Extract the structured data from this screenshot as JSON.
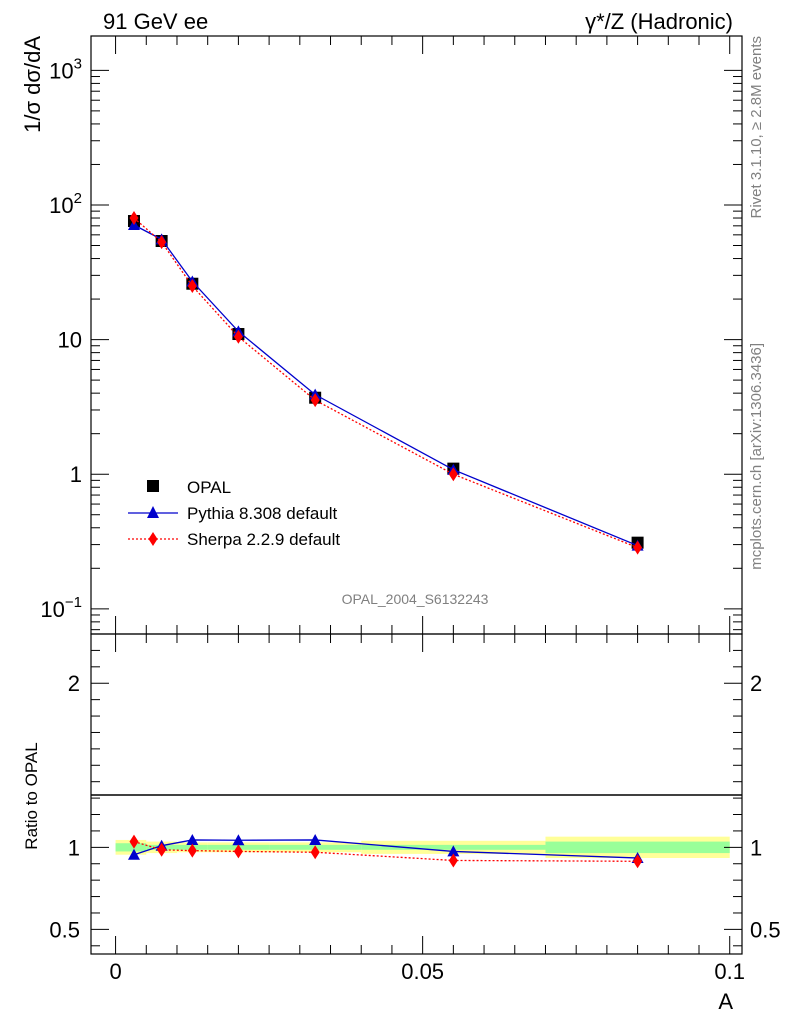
{
  "header": {
    "left": "91 GeV ee",
    "right": "γ*/Z (Hadronic)"
  },
  "side_labels": {
    "rivet": "Rivet 3.1.10, ≥ 2.8M events",
    "mcplots": "mcplots.cern.ch [arXiv:1306.3436]"
  },
  "analysis_id": "OPAL_2004_S6132243",
  "chart_data": [
    {
      "type": "line",
      "title": "",
      "ylabel": "1/σ dσ/dA",
      "xlabel": "",
      "yscale": "log",
      "xlim": [
        -0.004,
        0.102
      ],
      "ylim": [
        0.065,
        1800
      ],
      "y_ticks": [
        {
          "value": 0.1,
          "base": "10",
          "exp": "−1"
        },
        {
          "value": 1,
          "label": "1"
        },
        {
          "value": 10,
          "label": "10"
        },
        {
          "value": 100,
          "base": "10",
          "exp": "2"
        },
        {
          "value": 1000,
          "base": "10",
          "exp": "3"
        }
      ],
      "legend_position": "lower-left",
      "series": [
        {
          "name": "OPAL",
          "color": "#000000",
          "marker": "square",
          "x": [
            0.003,
            0.0075,
            0.0125,
            0.02,
            0.0325,
            0.055,
            0.085
          ],
          "y": [
            76,
            54,
            26,
            11,
            3.7,
            1.1,
            0.31
          ]
        },
        {
          "name": "Pythia 8.308 default",
          "color": "#0000cc",
          "marker": "triangle",
          "line": "solid",
          "x": [
            0.003,
            0.0075,
            0.0125,
            0.02,
            0.0325,
            0.055,
            0.085
          ],
          "y": [
            71,
            55.5,
            27,
            11.5,
            3.9,
            1.08,
            0.295
          ]
        },
        {
          "name": "Sherpa 2.2.9 default",
          "color": "#ff0000",
          "marker": "diamond",
          "line": "dotted",
          "x": [
            0.003,
            0.0075,
            0.0125,
            0.02,
            0.0325,
            0.055,
            0.085
          ],
          "y": [
            80,
            53,
            25,
            10.5,
            3.55,
            1.0,
            0.285
          ]
        }
      ]
    },
    {
      "type": "line",
      "title": "",
      "ylabel": "Ratio to OPAL",
      "xlabel": "A",
      "xlim": [
        -0.004,
        0.102
      ],
      "ylim": [
        0.35,
        2.3
      ],
      "x_ticks": [
        0,
        0.05,
        0.1
      ],
      "x_tick_labels": [
        "0",
        "0.05",
        "0.1"
      ],
      "y_ticks": [
        0.5,
        1,
        2
      ],
      "y_tick_labels": [
        "0.5",
        "1",
        "2"
      ],
      "uncertainty_bands": [
        {
          "x0": 0.0,
          "x1": 0.005,
          "inner": [
            0.975,
            1.025
          ],
          "outer": [
            0.955,
            1.045
          ]
        },
        {
          "x0": 0.005,
          "x1": 0.01,
          "inner": [
            0.985,
            1.015
          ],
          "outer": [
            0.965,
            1.035
          ]
        },
        {
          "x0": 0.01,
          "x1": 0.015,
          "inner": [
            0.985,
            1.015
          ],
          "outer": [
            0.97,
            1.03
          ]
        },
        {
          "x0": 0.015,
          "x1": 0.025,
          "inner": [
            0.985,
            1.015
          ],
          "outer": [
            0.97,
            1.03
          ]
        },
        {
          "x0": 0.025,
          "x1": 0.04,
          "inner": [
            0.985,
            1.015
          ],
          "outer": [
            0.97,
            1.03
          ]
        },
        {
          "x0": 0.04,
          "x1": 0.07,
          "inner": [
            0.985,
            1.015
          ],
          "outer": [
            0.96,
            1.04
          ]
        },
        {
          "x0": 0.07,
          "x1": 0.1,
          "inner": [
            0.965,
            1.035
          ],
          "outer": [
            0.935,
            1.065
          ]
        }
      ],
      "series": [
        {
          "name": "Pythia 8.308 default",
          "color": "#0000cc",
          "marker": "triangle",
          "x": [
            0.003,
            0.0075,
            0.0125,
            0.02,
            0.0325,
            0.055,
            0.085
          ],
          "y": [
            0.955,
            1.01,
            1.045,
            1.043,
            1.045,
            0.975,
            0.935
          ]
        },
        {
          "name": "Sherpa 2.2.9 default",
          "color": "#ff0000",
          "marker": "diamond",
          "x": [
            0.003,
            0.0075,
            0.0125,
            0.02,
            0.0325,
            0.055,
            0.085
          ],
          "y": [
            1.035,
            0.985,
            0.98,
            0.975,
            0.97,
            0.92,
            0.915
          ]
        }
      ]
    }
  ]
}
